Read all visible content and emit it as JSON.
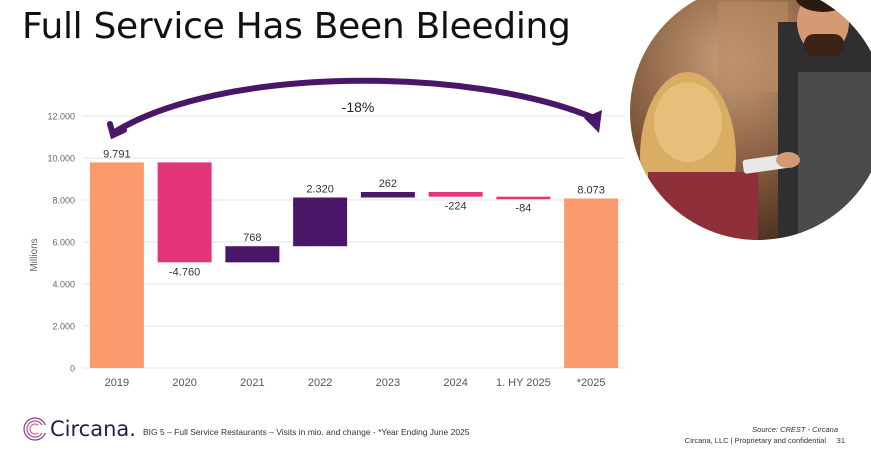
{
  "title": "Full Service Has Been Bleeding",
  "chart_data": {
    "type": "waterfall",
    "ylabel": "Millions",
    "ylim": [
      0,
      12000
    ],
    "yticks": [
      0,
      2000,
      4000,
      6000,
      8000,
      10000,
      12000
    ],
    "ytick_labels": [
      "0",
      "2.000",
      "4.000",
      "6.000",
      "8.000",
      "10.000",
      "12.000"
    ],
    "grid": true,
    "categories": [
      "2019",
      "2020",
      "2021",
      "2022",
      "2023",
      "2024",
      "1. HY 2025",
      "*2025"
    ],
    "bars": [
      {
        "kind": "total",
        "value": 9791,
        "label": "9.791"
      },
      {
        "kind": "delta",
        "value": -4760,
        "label": "-4.760"
      },
      {
        "kind": "delta",
        "value": 768,
        "label": "768"
      },
      {
        "kind": "delta",
        "value": 2320,
        "label": "2.320"
      },
      {
        "kind": "delta",
        "value": 262,
        "label": "262"
      },
      {
        "kind": "delta",
        "value": -224,
        "label": "-224"
      },
      {
        "kind": "delta",
        "value": -84,
        "label": "-84"
      },
      {
        "kind": "total",
        "value": 8073,
        "label": "8.073"
      }
    ],
    "annotation": "-18%",
    "colors": {
      "total": "#F99B6D",
      "decrease_large": "#E5357A",
      "increase": "#4A1668",
      "decrease_small": "#E5357A",
      "arrow": "#4A1668"
    }
  },
  "footer": {
    "note": "BIG 5 – Full Service Restaurants – Visits in mio. and change - *Year Ending June 2025",
    "source": "Source: CREST - Circana",
    "legal": "Circana, LLC | Proprietary and confidential",
    "page": "31"
  },
  "logo": {
    "text": "Circana."
  }
}
